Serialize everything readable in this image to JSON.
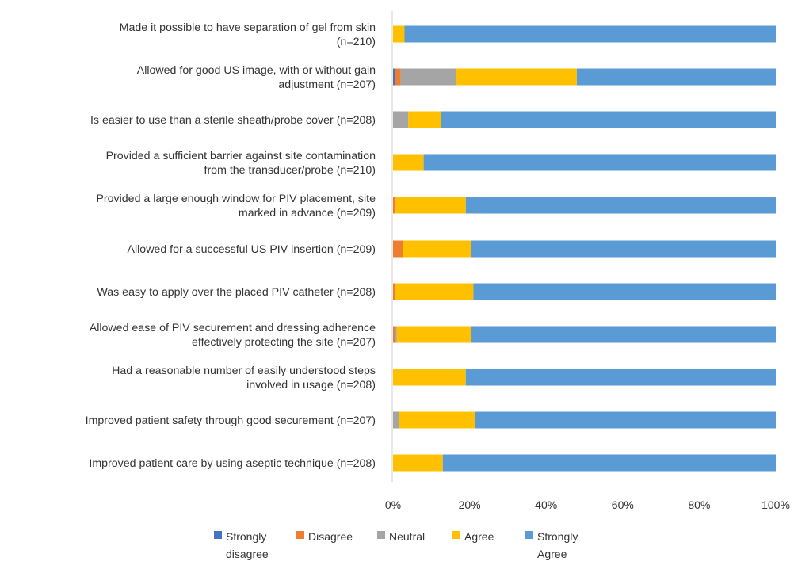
{
  "chart_data": {
    "type": "bar",
    "orientation": "horizontal",
    "stacked": true,
    "categories": [
      [
        "Made it possible to have separation of gel from skin",
        "(n=210)"
      ],
      [
        "Allowed for good US image, with or without gain",
        "adjustment (n=207)"
      ],
      [
        "Is easier to use than a sterile sheath/probe cover (n=208)"
      ],
      [
        "Provided a sufficient barrier against site contamination",
        "from the transducer/probe (n=210)"
      ],
      [
        "Provided a large enough window for PIV placement, site",
        "marked in advance (n=209)"
      ],
      [
        "Allowed for a successful US PIV insertion (n=209)"
      ],
      [
        "Was easy to apply over the placed PIV catheter (n=208)"
      ],
      [
        "Allowed ease of PIV securement and dressing adherence",
        "effectively protecting the site (n=207)"
      ],
      [
        "Had a reasonable number of easily understood steps",
        "involved in usage (n=208)"
      ],
      [
        "Improved patient safety through good securement (n=207)"
      ],
      [
        "Improved patient care by using aseptic technique (n=208)"
      ]
    ],
    "series": [
      {
        "name": "Strongly disagree",
        "legend_lines": [
          "Strongly",
          "disagree"
        ],
        "color": "#4472C4",
        "values": [
          0,
          0.5,
          0,
          0,
          0,
          0,
          0,
          0,
          0,
          0,
          0
        ]
      },
      {
        "name": "Disagree",
        "legend_lines": [
          "Disagree"
        ],
        "color": "#ED7D31",
        "values": [
          0,
          1.5,
          0,
          0,
          0.5,
          2.5,
          0.5,
          0.5,
          0,
          0,
          0
        ]
      },
      {
        "name": "Neutral",
        "legend_lines": [
          "Neutral"
        ],
        "color": "#A5A5A5",
        "values": [
          0,
          14.5,
          4,
          0,
          0,
          0,
          0,
          0.5,
          0,
          1.5,
          0
        ]
      },
      {
        "name": "Agree",
        "legend_lines": [
          "Agree"
        ],
        "color": "#FFC000",
        "values": [
          3,
          31.5,
          8.5,
          8,
          18.5,
          18,
          20.5,
          19.5,
          19,
          20,
          13
        ]
      },
      {
        "name": "Strongly Agree",
        "legend_lines": [
          "Strongly",
          "Agree"
        ],
        "color": "#5B9BD5",
        "values": [
          97,
          52,
          87.5,
          92,
          81,
          79.5,
          79,
          79.5,
          81,
          78.5,
          87
        ]
      }
    ],
    "xlim": [
      0,
      100
    ],
    "xticks": [
      "0%",
      "20%",
      "40%",
      "60%",
      "80%",
      "100%"
    ],
    "title": "",
    "xlabel": "",
    "ylabel": "",
    "grid": false,
    "legend_position": "bottom"
  }
}
